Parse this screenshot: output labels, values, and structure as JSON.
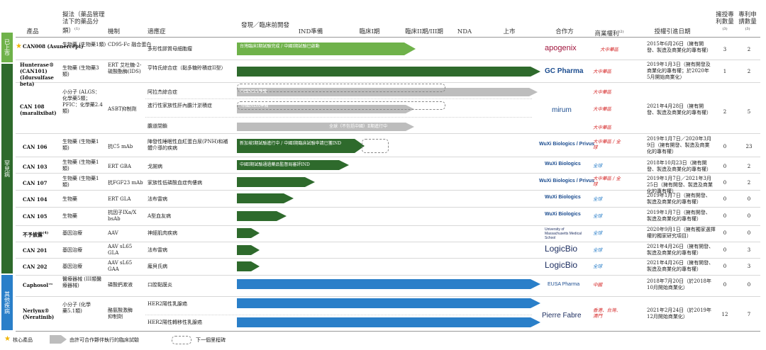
{
  "headers": {
    "product": "產品",
    "category": "擬法（藥品管理法下的藥品分類）",
    "category_note": "(1)",
    "mechanism": "機制",
    "indication": "適應症",
    "discovery": "發現／臨床前開發",
    "ind": "IND準備",
    "phase1": "臨床I期",
    "phase23": "臨床II期/III期",
    "nda": "NDA",
    "market": "上市",
    "partner": "合作方",
    "rights": "商業權利",
    "rights_note": "(2)",
    "license_date": "授權引進日期",
    "patents_granted": "擁授專利數量",
    "patents_granted_note": "(3)",
    "patents_applied": "專利申請數量",
    "patents_applied_note": "(3)"
  },
  "side_labels": {
    "marketed": "已上市",
    "rare": "罕見病",
    "other": "其他疾病"
  },
  "rows": [
    {
      "product": "CAN008 (Asunercept)",
      "category": "生物藥 (生物藥1類)",
      "mechanism": "CD95-Fc 融合蛋白",
      "indication": "多形性膠質母細胞瘤",
      "arrow_label": "台灣臨床I期試驗完成 / 中國I期試驗已啟動",
      "partner": "apogenix",
      "rights": "大中華區",
      "date": "2015年6月26日（擁有開發、製造及商業化的專有權）",
      "granted": "3",
      "applied": "2"
    },
    {
      "product": "Hunterase® (CAN101) (Idursulfase beta)",
      "category": "生物藥 (生物藥3類)",
      "mechanism": "ERT 艾杜糖-2-硫酸酯酶(IDS)",
      "indication": "亨特氏綜合症（黏多糖貯積症II型）",
      "partner": "GC Pharma",
      "rights": "大中華區",
      "date": "2019年1月3日（擁有開發及商業化的專有權；於2020年5月開始商業化）",
      "granted": "1",
      "applied": "2"
    },
    {
      "product": "CAN 108 (maralixibat)",
      "category": "小分子 (ALGS：化學藥5類；PFIC：化學藥2.4類)",
      "mechanism": "ASBT抑制劑",
      "indication": "阿拉杰綜合症",
      "indication2": "進行性家族性肝內膽汁淤積症",
      "indication3": "膽道閉鎖",
      "arrow_label": "中國NDA準備",
      "arrow_label2": "中國NDA準備",
      "arrow_label3": "全球（不包括中國）Ⅱ期進行中",
      "partner": "mirum",
      "rights": "大中華區",
      "date": "2021年4月28日（擁有開發、製造及商業化的專有權）",
      "granted": "2",
      "applied": "5"
    },
    {
      "product": "CAN 106",
      "category": "生物藥 (生物藥1類)",
      "mechanism": "抗C5 mAb",
      "indication": "陣發性睡眠性血紅蛋白尿(PNH)和補體介導的疾病",
      "arrow_label": "新加坡I期試驗進行中 / 中國I期臨床試驗申請已獲IND",
      "partner": "WuXi Biologics / Privus",
      "rights": "大中華區 / 全球",
      "date": "2019年1月7日／2020年3月9日（擁有開發、製造及商業化的專有權）",
      "granted": "0",
      "applied": "23"
    },
    {
      "product": "CAN 103",
      "category": "生物藥 (生物藥1類)",
      "mechanism": "ERT GBA",
      "indication": "戈謝病",
      "arrow_label": "中國I期試驗通過藥品監督局審評IND",
      "partner": "WuXi Biologics",
      "rights": "全球",
      "date": "2018年10月23日（擁有開發、製造及商業化的專有權）",
      "granted": "0",
      "applied": "2"
    },
    {
      "product": "CAN 107",
      "category": "生物藥 (生物藥1類)",
      "mechanism": "抗FGF23 mAb",
      "indication": "家族性低磷酸血症佝僂病",
      "partner": "WuXi Biologics / Privus",
      "rights": "大中華區 / 全球",
      "date": "2019年1月7日／2021年3月25日（擁有開發、製造及商業化的專有權）",
      "granted": "0",
      "applied": "2"
    },
    {
      "product": "CAN 104",
      "category": "生物藥",
      "mechanism": "ERT GLA",
      "indication": "法布雷病",
      "partner": "WuXi Biologics",
      "rights": "全球",
      "date": "2019年1月7日（擁有開發、製造及商業化的專有權）",
      "granted": "0",
      "applied": "0"
    },
    {
      "product": "CAN 105",
      "category": "生物藥",
      "mechanism": "抗因子IXa/X bsAb",
      "indication": "A型血友病",
      "partner": "WuXi Biologics",
      "rights": "全球",
      "date": "2019年1月7日（擁有開發、製造及商業化的專有權）",
      "granted": "0",
      "applied": "0"
    },
    {
      "product": "不予披露",
      "product_note": "(4)",
      "category": "基因治療",
      "mechanism": "AAV",
      "indication": "神經肌肉疾病",
      "partner": "University of Massachusetts Medical School",
      "rights": "全球",
      "date": "2020年9月1日（擁有獨家選擇權的獨家研究項目）",
      "granted": "0",
      "applied": "0"
    },
    {
      "product": "CAN 201",
      "category": "基因治療",
      "mechanism": "AAV sL65 GLA",
      "indication": "法布雷病",
      "partner": "LogicBio",
      "rights": "全球",
      "date": "2021年4月26日（擁有開發、製造及商業化的專有權）",
      "granted": "0",
      "applied": "3"
    },
    {
      "product": "CAN 202",
      "category": "基因治療",
      "mechanism": "AAV sL65 GAA",
      "indication": "龐貝氏病",
      "partner": "LogicBio",
      "rights": "全球",
      "date": "2021年4月26日（擁有開發、製造及商業化的專有權）",
      "granted": "0",
      "applied": "3"
    },
    {
      "product": "Caphosol™",
      "category": "醫療器械 (III類醫療器械)",
      "mechanism": "磷酸鈣漱液",
      "indication": "口腔黏膜炎",
      "partner": "EUSA Pharma",
      "rights": "中國",
      "date": "2018年7月20日（於2018年10月開始商業化）",
      "granted": "0",
      "applied": "0"
    },
    {
      "product": "Nerlynx® (Neratinib)",
      "category": "小分子 (化學藥5.1類)",
      "mechanism": "酪氨酸激酶抑制劑",
      "indication": "HER2陽性乳腺癌",
      "indication2": "HER2陽性轉移性乳腺癌",
      "partner": "Pierre Fabre",
      "rights": "香港、台灣、澳門",
      "date": "2021年2月24日（於2019年12月開始商業化）",
      "granted": "12",
      "applied": "7"
    }
  ],
  "legend": {
    "core": "核心產品",
    "partner_trial": "由許可合作夥伴執行的臨床試驗",
    "next": "下一個里程碑"
  },
  "colors": {
    "green_dark": "#2e6a2c",
    "green_light": "#6fb24a",
    "gray": "#bdbdbd",
    "blue": "#2a7fc9",
    "red": "#d31f1f",
    "star": "#f0b400"
  }
}
